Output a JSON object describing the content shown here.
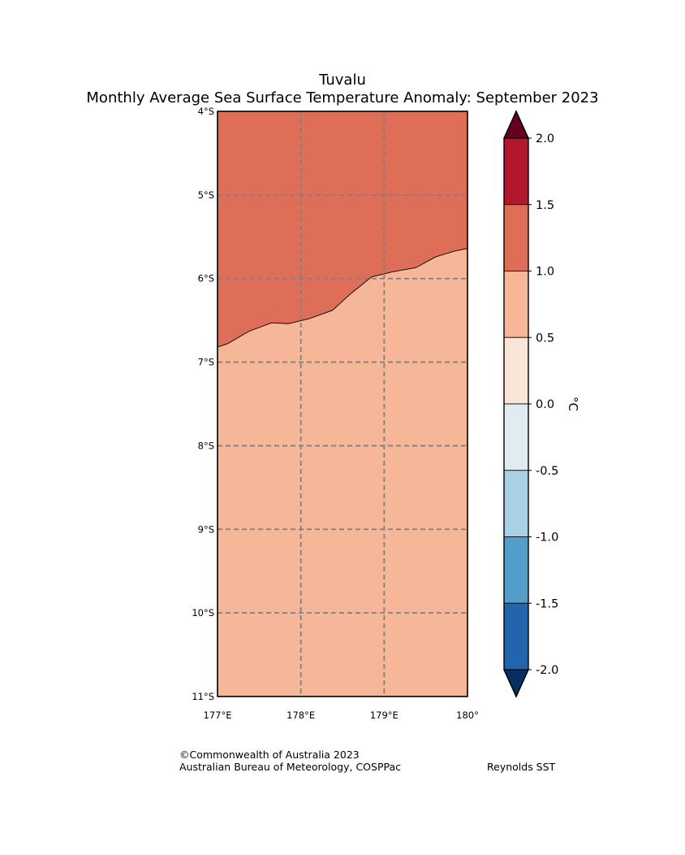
{
  "title": {
    "line1": "Tuvalu",
    "line2": "Monthly Average Sea Surface Temperature Anomaly: September 2023"
  },
  "map": {
    "lon_range": [
      177,
      180
    ],
    "lat_range": [
      -11,
      -4
    ],
    "lon_ticks": [
      "177°E",
      "178°E",
      "179°E",
      "180°"
    ],
    "lat_ticks": [
      "4°S",
      "5°S",
      "6°S",
      "7°S",
      "8°S",
      "9°S",
      "10°S",
      "11°S"
    ],
    "regions": [
      {
        "name": "anomaly 1.0 to 1.5",
        "color": "#de6e58"
      },
      {
        "name": "anomaly 0.5 to 1.0",
        "color": "#f6b799"
      }
    ],
    "contour_boundary": [
      [
        177.0,
        -6.82
      ],
      [
        177.12,
        -6.78
      ],
      [
        177.38,
        -6.63
      ],
      [
        177.65,
        -6.53
      ],
      [
        177.85,
        -6.54
      ],
      [
        178.1,
        -6.48
      ],
      [
        178.38,
        -6.38
      ],
      [
        178.6,
        -6.18
      ],
      [
        178.85,
        -5.98
      ],
      [
        179.1,
        -5.92
      ],
      [
        179.38,
        -5.87
      ],
      [
        179.62,
        -5.74
      ],
      [
        179.85,
        -5.67
      ],
      [
        180.0,
        -5.64
      ]
    ],
    "grid_color": "#808080"
  },
  "colorbar": {
    "unit": "°C",
    "tick_labels": [
      "2.0",
      "1.5",
      "1.0",
      "0.5",
      "0.0",
      "-0.5",
      "-1.0",
      "-1.5",
      "-2.0"
    ],
    "over_color": "#67001f",
    "under_color": "#053061",
    "band_colors": [
      "#b2182b",
      "#de6e58",
      "#f6b799",
      "#fbe5d8",
      "#e1ebf2",
      "#a9d0e4",
      "#539dcb",
      "#2265ad"
    ]
  },
  "credits": {
    "line1": "©Commonwealth of Australia 2023",
    "line2": "Australian Bureau of Meteorology, COSPPac",
    "source": "Reynolds SST"
  }
}
